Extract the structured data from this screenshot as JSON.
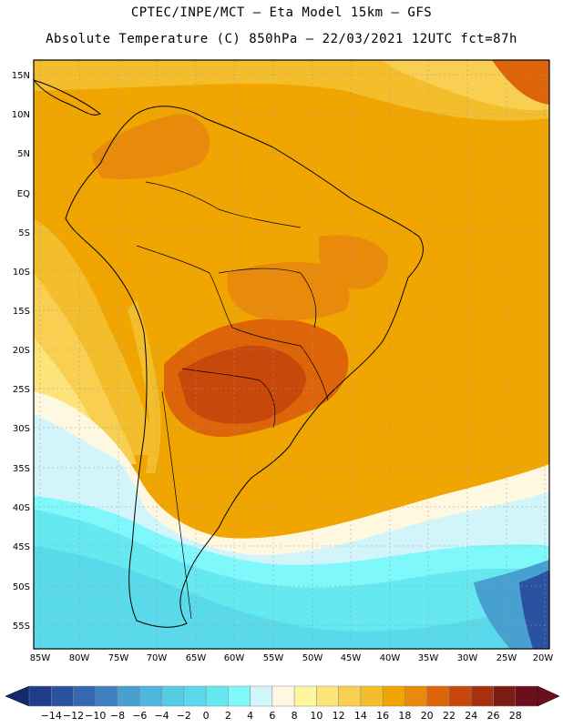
{
  "header": {
    "line1": "CPTEC/INPE/MCT –  Eta Model 15km – GFS",
    "line2": "Absolute Temperature (C) 850hPa – 22/03/2021 12UTC fct=87h"
  },
  "map": {
    "lat_labels": [
      "15N",
      "10N",
      "5N",
      "EQ",
      "5S",
      "10S",
      "15S",
      "20S",
      "25S",
      "30S",
      "35S",
      "40S",
      "45S",
      "50S",
      "55S"
    ],
    "lon_labels": [
      "85W",
      "80W",
      "75W",
      "70W",
      "65W",
      "60W",
      "55W",
      "50W",
      "45W",
      "40W",
      "35W",
      "30W",
      "25W",
      "20W"
    ],
    "background_color": "#f0a500"
  },
  "colorbar": {
    "labels": [
      "-14",
      "-12",
      "-10",
      "-8",
      "-6",
      "-4",
      "-2",
      "0",
      "2",
      "4",
      "6",
      "8",
      "10",
      "12",
      "14",
      "16",
      "18",
      "20",
      "22",
      "24",
      "26",
      "28"
    ],
    "colors": [
      "#1f3c88",
      "#2b52a0",
      "#3667b2",
      "#3f80c0",
      "#47a0cf",
      "#4fb7dc",
      "#55cce6",
      "#5ad9ea",
      "#66e8f0",
      "#7ff8fb",
      "#d2f4fb",
      "#fff8e0",
      "#fff6a0",
      "#fce37a",
      "#f8cf50",
      "#f3bd2c",
      "#f0a500",
      "#e98a0a",
      "#dd6409",
      "#c8470b",
      "#a7300f",
      "#7a1c14",
      "#6b0f1a"
    ],
    "low_arrow_color": "#142a6a",
    "high_arrow_color": "#6b0f1a"
  }
}
